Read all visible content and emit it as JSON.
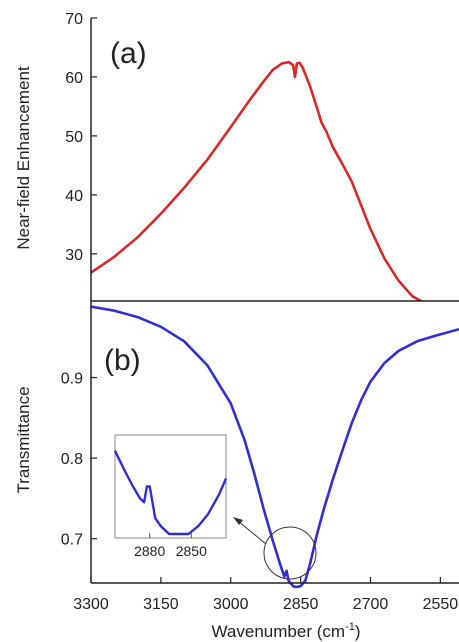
{
  "chart_data": [
    {
      "panel_label": "(a)",
      "type": "line",
      "xlabel": "",
      "ylabel": "Near-field Enhancement",
      "xlim": [
        3300,
        2510
      ],
      "x_axis_reversed": true,
      "ylim": [
        22,
        70
      ],
      "yticks": [
        "30",
        "40",
        "50",
        "60",
        "70"
      ],
      "yticks_values": [
        30,
        40,
        50,
        60,
        70
      ],
      "color": "#d42a2a",
      "x": [
        3300,
        3250,
        3200,
        3150,
        3100,
        3050,
        3000,
        2960,
        2930,
        2910,
        2890,
        2875,
        2866,
        2862,
        2858,
        2852,
        2845,
        2830,
        2815,
        2805,
        2795,
        2780,
        2760,
        2740,
        2720,
        2700,
        2670,
        2640,
        2610,
        2580,
        2550,
        2530
      ],
      "values": [
        26.8,
        29.5,
        32.8,
        36.8,
        41.2,
        46.0,
        51.5,
        56.0,
        59.2,
        61.2,
        62.3,
        62.5,
        62.0,
        60.0,
        62.3,
        62.4,
        61.5,
        58.5,
        54.8,
        52.2,
        50.8,
        48.0,
        45.2,
        42.2,
        38.2,
        34.2,
        29.2,
        25.5,
        22.8,
        21.5,
        20.8,
        20.5
      ]
    },
    {
      "panel_label": "(b)",
      "type": "line",
      "xlabel": "Wavenumber (cm",
      "xlabel_superscript": "-1",
      "xlabel_suffix": ")",
      "ylabel": "Transmittance",
      "xlim": [
        3300,
        2510
      ],
      "x_axis_reversed": true,
      "xticks": [
        "3300",
        "3150",
        "3000",
        "2850",
        "2700",
        "2550"
      ],
      "xticks_values": [
        3300,
        3150,
        3000,
        2850,
        2700,
        2550
      ],
      "ylim": [
        0.645,
        0.995
      ],
      "yticks": [
        "0.7",
        "0.8",
        "0.9"
      ],
      "yticks_values": [
        0.7,
        0.8,
        0.9
      ],
      "color": "#2f2fd0",
      "x": [
        3300,
        3250,
        3200,
        3150,
        3100,
        3050,
        3000,
        2970,
        2950,
        2930,
        2910,
        2895,
        2885,
        2880,
        2876,
        2872,
        2866,
        2860,
        2850,
        2840,
        2830,
        2815,
        2800,
        2780,
        2760,
        2740,
        2720,
        2700,
        2670,
        2640,
        2600,
        2560,
        2510
      ],
      "values": [
        0.988,
        0.983,
        0.975,
        0.963,
        0.945,
        0.915,
        0.868,
        0.822,
        0.782,
        0.738,
        0.698,
        0.67,
        0.653,
        0.66,
        0.648,
        0.645,
        0.641,
        0.64,
        0.641,
        0.648,
        0.668,
        0.705,
        0.737,
        0.775,
        0.81,
        0.844,
        0.872,
        0.895,
        0.918,
        0.933,
        0.945,
        0.952,
        0.96
      ],
      "inset": {
        "xlim": [
          2905,
          2825
        ],
        "x_axis_reversed": true,
        "xticks": [
          "2880",
          "2850"
        ],
        "xticks_values": [
          2880,
          2850
        ],
        "ylim": [
          0.634,
          0.66
        ],
        "x": [
          2905,
          2898,
          2892,
          2887,
          2884,
          2882,
          2880,
          2878,
          2876,
          2872,
          2866,
          2860,
          2852,
          2845,
          2838,
          2830,
          2825
        ],
        "values": [
          0.656,
          0.651,
          0.647,
          0.644,
          0.643,
          0.647,
          0.647,
          0.643,
          0.639,
          0.637,
          0.635,
          0.635,
          0.635,
          0.637,
          0.64,
          0.645,
          0.649
        ]
      }
    }
  ]
}
